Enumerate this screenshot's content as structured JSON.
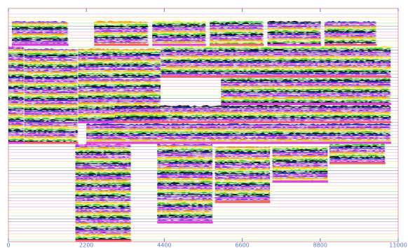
{
  "chart_data": {
    "type": "trace-blocks",
    "xlim": [
      0,
      11000
    ],
    "xticks": [
      0,
      2200,
      4400,
      6600,
      8800,
      11000
    ],
    "ylim": [
      100,
      0
    ],
    "colors": [
      "#8a3fd8",
      "#f0a020",
      "#f4e640",
      "#3cc83c",
      "#111111",
      "#1a2aa8",
      "#e040e0",
      "#f06070"
    ],
    "blocks": [
      {
        "x0": 100,
        "x1": 1700,
        "y0": 3,
        "y1": 14
      },
      {
        "x0": 2420,
        "x1": 3960,
        "y0": 3,
        "y1": 14
      },
      {
        "x0": 4060,
        "x1": 5580,
        "y0": 3,
        "y1": 14
      },
      {
        "x0": 5680,
        "x1": 7210,
        "y0": 3,
        "y1": 14
      },
      {
        "x0": 7310,
        "x1": 8830,
        "y0": 3,
        "y1": 14
      },
      {
        "x0": 8920,
        "x1": 10400,
        "y0": 3,
        "y1": 14
      },
      {
        "x0": 0,
        "x1": 450,
        "y0": 14,
        "y1": 57
      },
      {
        "x0": 450,
        "x1": 1970,
        "y0": 15,
        "y1": 57
      },
      {
        "x0": 1970,
        "x1": 4300,
        "y0": 15,
        "y1": 48
      },
      {
        "x0": 4300,
        "x1": 10800,
        "y0": 14,
        "y1": 28
      },
      {
        "x0": 6000,
        "x1": 10800,
        "y0": 28,
        "y1": 40
      },
      {
        "x0": 3000,
        "x1": 10800,
        "y0": 40,
        "y1": 48
      },
      {
        "x0": 2200,
        "x1": 10800,
        "y0": 48,
        "y1": 57
      },
      {
        "x0": 1890,
        "x1": 3470,
        "y0": 57,
        "y1": 100
      },
      {
        "x0": 4200,
        "x1": 5770,
        "y0": 57,
        "y1": 92
      },
      {
        "x0": 5830,
        "x1": 7390,
        "y0": 58,
        "y1": 83
      },
      {
        "x0": 7450,
        "x1": 9020,
        "y0": 58,
        "y1": 74
      },
      {
        "x0": 9060,
        "x1": 10640,
        "y0": 57,
        "y1": 66
      }
    ]
  }
}
